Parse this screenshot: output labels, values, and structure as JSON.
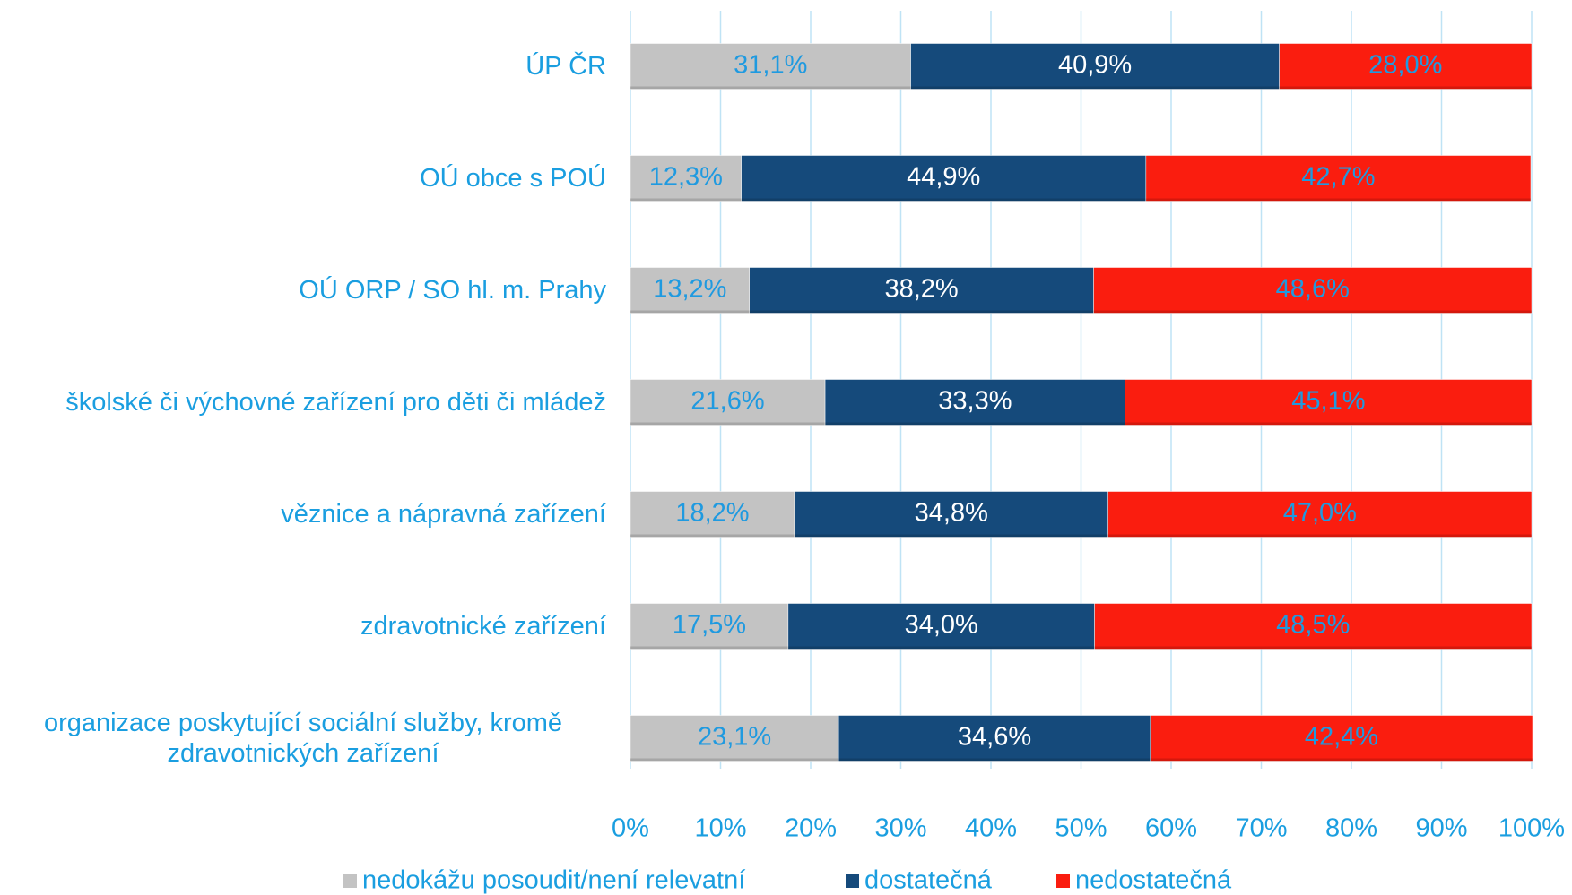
{
  "chart_data": {
    "type": "stacked_bar_horizontal",
    "categories": [
      "ÚP ČR",
      "OÚ obce s POÚ",
      "OÚ ORP / SO hl. m. Prahy",
      "školské či výchovné zařízení pro děti či mládež",
      "věznice a nápravná zařízení",
      "zdravotnické zařízení",
      "organizace poskytující sociální služby, kromě zdravotnických zařízení"
    ],
    "series": [
      {
        "name": "nedokážu posoudit/není relevatní",
        "color": "#c3c3c3",
        "label_color": "#1f9ae0",
        "values": [
          31.1,
          12.3,
          13.2,
          21.6,
          18.2,
          17.5,
          23.1
        ],
        "value_labels": [
          "31,1%",
          "12,3%",
          "13,2%",
          "21,6%",
          "18,2%",
          "17,5%",
          "23,1%"
        ]
      },
      {
        "name": "dostatečná",
        "color": "#154a7b",
        "label_color": "#ffffff",
        "values": [
          40.9,
          44.9,
          38.2,
          33.3,
          34.8,
          34.0,
          34.6
        ],
        "value_labels": [
          "40,9%",
          "44,9%",
          "38,2%",
          "33,3%",
          "34,8%",
          "34,0%",
          "34,6%"
        ]
      },
      {
        "name": "nedostatečná",
        "color": "#fa1d0f",
        "label_color": "#1f9ae0",
        "values": [
          28.0,
          42.7,
          48.6,
          45.1,
          47.0,
          48.5,
          42.4
        ],
        "value_labels": [
          "28,0%",
          "42,7%",
          "48,6%",
          "45,1%",
          "47,0%",
          "48,5%",
          "42,4%"
        ]
      }
    ],
    "xlim": [
      0,
      100
    ],
    "xticks": [
      {
        "value": 0,
        "label": "0%"
      },
      {
        "value": 10,
        "label": "10%"
      },
      {
        "value": 20,
        "label": "20%"
      },
      {
        "value": 30,
        "label": "30%"
      },
      {
        "value": 40,
        "label": "40%"
      },
      {
        "value": 50,
        "label": "50%"
      },
      {
        "value": 60,
        "label": "60%"
      },
      {
        "value": 70,
        "label": "70%"
      },
      {
        "value": 80,
        "label": "80%"
      },
      {
        "value": 90,
        "label": "90%"
      },
      {
        "value": 100,
        "label": "100%"
      }
    ],
    "grid": true,
    "legend": "bottom"
  }
}
